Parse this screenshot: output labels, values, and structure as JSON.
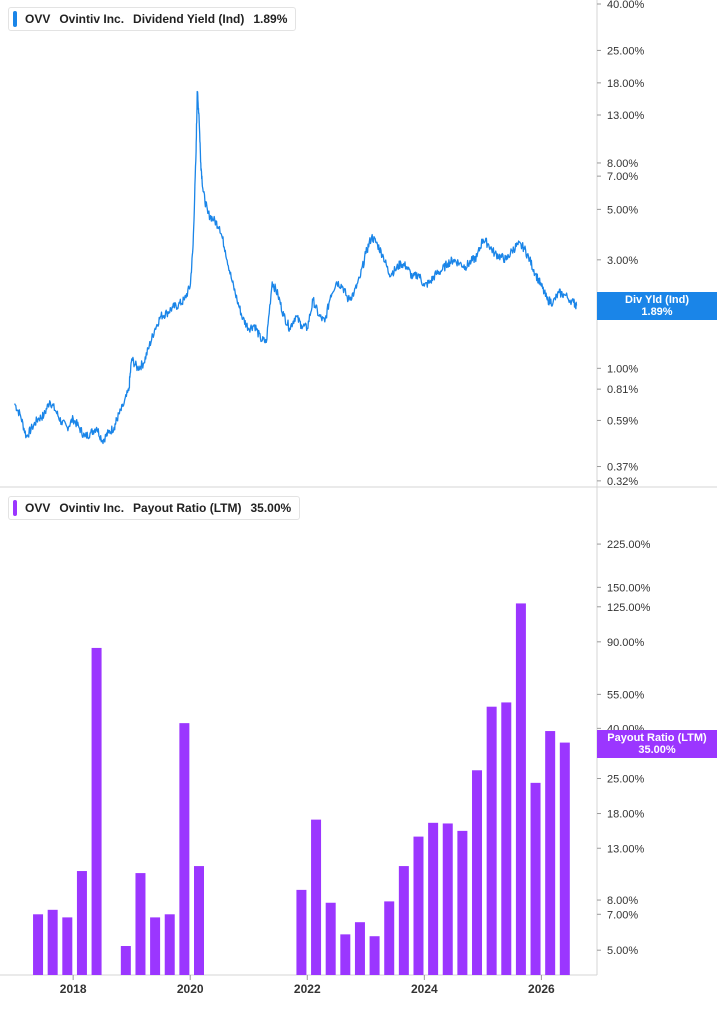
{
  "chart_data": [
    {
      "type": "line",
      "ticker": "OVV",
      "company": "Ovintiv Inc.",
      "metric": "Dividend Yield (Ind)",
      "current_value": "1.89%",
      "flag_label": "Div Yld (Ind)",
      "color": "#1a85e8",
      "yscale": "log",
      "ylim": [
        0.31,
        40
      ],
      "yticks": [
        "40.00%",
        "25.00%",
        "18.00%",
        "13.00%",
        "8.00%",
        "7.00%",
        "5.00%",
        "3.00%",
        "1.00%",
        "0.81%",
        "0.59%",
        "0.37%",
        "0.32%"
      ],
      "grid": false,
      "series": [
        {
          "x": [
            2017.0,
            2017.1,
            2017.2,
            2017.3,
            2017.4,
            2017.5,
            2017.6,
            2017.7,
            2017.8,
            2017.9,
            2018.0,
            2018.1,
            2018.2,
            2018.3,
            2018.4,
            2018.5,
            2018.6,
            2018.7,
            2018.75,
            2018.85,
            2018.95,
            2019.0,
            2019.1,
            2019.2,
            2019.3,
            2019.4,
            2019.5,
            2019.6,
            2019.7,
            2019.8,
            2019.9,
            2020.0,
            2020.05,
            2020.1,
            2020.12,
            2020.15,
            2020.18,
            2020.22,
            2020.3,
            2020.4,
            2020.5,
            2020.6,
            2020.7,
            2020.8,
            2020.9,
            2021.0,
            2021.1,
            2021.2,
            2021.3,
            2021.4,
            2021.5,
            2021.6,
            2021.7,
            2021.8,
            2021.9,
            2022.0,
            2022.1,
            2022.2,
            2022.3,
            2022.4,
            2022.5,
            2022.6,
            2022.7,
            2022.8,
            2022.9,
            2023.0,
            2023.1,
            2023.2,
            2023.3,
            2023.4,
            2023.5,
            2023.6,
            2023.7,
            2023.8,
            2023.9,
            2024.0,
            2024.1,
            2024.2,
            2024.3,
            2024.4,
            2024.5,
            2024.6,
            2024.7,
            2024.8,
            2024.9,
            2025.0,
            2025.1,
            2025.2,
            2025.3,
            2025.4,
            2025.5,
            2025.6,
            2025.7,
            2025.8,
            2025.9,
            2026.0,
            2026.1,
            2026.2,
            2026.3,
            2026.4,
            2026.55,
            2026.6
          ],
          "y": [
            0.7,
            0.62,
            0.5,
            0.55,
            0.6,
            0.62,
            0.72,
            0.65,
            0.58,
            0.55,
            0.6,
            0.55,
            0.5,
            0.52,
            0.55,
            0.48,
            0.52,
            0.55,
            0.6,
            0.68,
            0.8,
            1.1,
            1.0,
            1.05,
            1.25,
            1.5,
            1.7,
            1.75,
            1.85,
            1.9,
            2.0,
            2.3,
            3.5,
            9.0,
            16.5,
            13.0,
            8.0,
            6.0,
            4.8,
            4.5,
            4.2,
            3.3,
            2.5,
            2.0,
            1.65,
            1.5,
            1.55,
            1.35,
            1.3,
            2.4,
            2.1,
            1.7,
            1.5,
            1.7,
            1.55,
            1.5,
            2.0,
            1.7,
            1.6,
            2.1,
            2.4,
            2.3,
            2.0,
            2.15,
            2.5,
            3.2,
            3.8,
            3.5,
            3.1,
            2.6,
            2.7,
            2.9,
            2.8,
            2.5,
            2.6,
            2.3,
            2.4,
            2.6,
            2.7,
            2.9,
            3.0,
            2.9,
            2.8,
            2.95,
            3.1,
            3.7,
            3.5,
            3.2,
            3.1,
            3.0,
            3.3,
            3.5,
            3.4,
            3.0,
            2.6,
            2.3,
            2.0,
            1.95,
            2.15,
            2.1,
            1.95,
            1.89
          ]
        }
      ]
    },
    {
      "type": "bar",
      "ticker": "OVV",
      "company": "Ovintiv Inc.",
      "metric": "Payout Ratio (LTM)",
      "current_value": "35.00%",
      "flag_label": "Payout Ratio (LTM)",
      "color": "#9b36ff",
      "yscale": "log",
      "ylim": [
        4.0,
        290
      ],
      "yticks": [
        "225.00%",
        "150.00%",
        "125.00%",
        "90.00%",
        "55.00%",
        "40.00%",
        "25.00%",
        "18.00%",
        "13.00%",
        "8.00%",
        "7.00%",
        "5.00%"
      ],
      "xticks": [
        "2018",
        "2020",
        "2022",
        "2024",
        "2026"
      ],
      "xlim": [
        2016.75,
        2026.95
      ],
      "grid": false,
      "series": [
        {
          "x": [
            2017.4,
            2017.65,
            2017.9,
            2018.15,
            2018.4,
            2018.9,
            2019.15,
            2019.4,
            2019.65,
            2019.9,
            2020.15,
            2021.9,
            2022.15,
            2022.4,
            2022.65,
            2022.9,
            2023.15,
            2023.4,
            2023.65,
            2023.9,
            2024.15,
            2024.4,
            2024.65,
            2024.9,
            2025.15,
            2025.4,
            2025.65,
            2025.9,
            2026.15,
            2026.4
          ],
          "values": [
            7.0,
            7.3,
            6.8,
            10.5,
            85.0,
            5.2,
            10.3,
            6.8,
            7.0,
            42.0,
            11.0,
            8.8,
            17.0,
            7.8,
            5.8,
            6.5,
            5.7,
            7.9,
            11.0,
            14.5,
            16.5,
            16.4,
            15.3,
            27.0,
            49.0,
            51.0,
            129.0,
            24.0,
            39.0,
            35.0
          ]
        }
      ]
    }
  ]
}
